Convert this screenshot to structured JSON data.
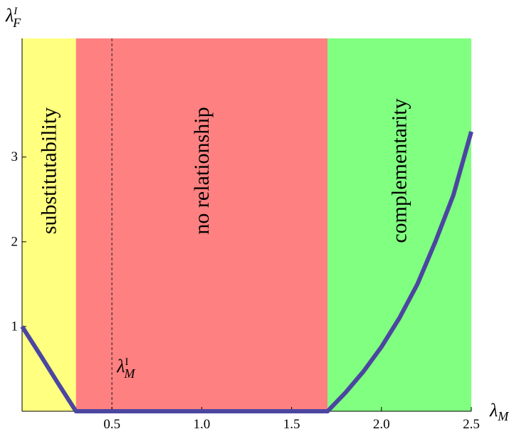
{
  "chart_data": {
    "type": "area",
    "title": "",
    "xlabel": "λ_M",
    "ylabel": "λ_F^I",
    "xlim": [
      0,
      2.5
    ],
    "ylim": [
      0,
      4.4
    ],
    "x_ticks": [
      0.5,
      1.0,
      1.5,
      2.0,
      2.5
    ],
    "x_tick_labels": [
      "0.5",
      "1.0",
      "1.5",
      "2.0",
      "2.5"
    ],
    "y_ticks": [
      1,
      2,
      3
    ],
    "y_tick_labels": [
      "1",
      "2",
      "3"
    ],
    "regions": [
      {
        "label": "substitutability",
        "x_range": [
          0,
          0.3
        ],
        "color": "#ffff80"
      },
      {
        "label": "no relationship",
        "x_range": [
          0.3,
          1.7
        ],
        "color": "#ff8080"
      },
      {
        "label": "complementarity",
        "x_range": [
          1.7,
          2.5
        ],
        "color": "#80ff80"
      }
    ],
    "reference_line": {
      "label": "λ_M^I",
      "x": 0.5,
      "style": "dashed"
    },
    "series": [
      {
        "color": "#4b46a0",
        "x": [
          0,
          0.1,
          0.2,
          0.3,
          1.7,
          1.8,
          1.9,
          2.0,
          2.1,
          2.2,
          2.3,
          2.4,
          2.5
        ],
        "y": [
          1.0,
          0.67,
          0.33,
          0,
          0,
          0.22,
          0.47,
          0.76,
          1.1,
          1.5,
          2.0,
          2.55,
          3.3
        ]
      }
    ]
  }
}
